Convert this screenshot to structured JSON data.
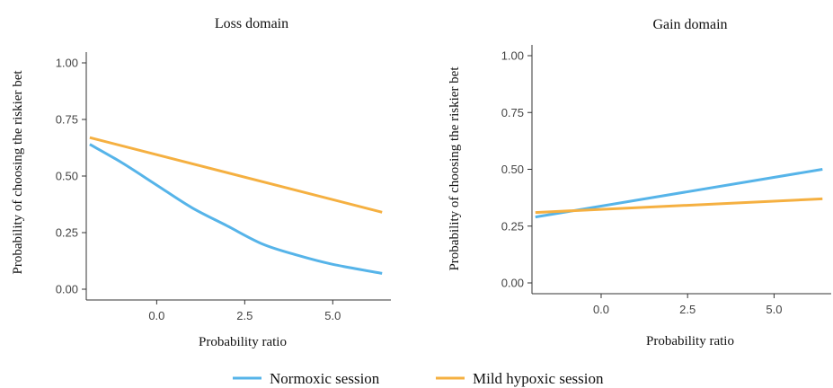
{
  "chart_data": [
    {
      "type": "line",
      "title": "Loss domain",
      "xlabel": "Probability ratio",
      "ylabel": "Probability of choosing the riskier bet",
      "xlim": [
        -2.0,
        6.6
      ],
      "ylim": [
        0.0,
        1.0
      ],
      "x_ticks": [
        0.0,
        2.5,
        5.0
      ],
      "x_tick_labels": [
        "0.0",
        "2.5",
        "5.0"
      ],
      "y_ticks": [
        0.0,
        0.25,
        0.5,
        0.75,
        1.0
      ],
      "y_tick_labels": [
        "0.00",
        "0.25",
        "0.50",
        "0.75",
        "1.00"
      ],
      "grid": false,
      "series": [
        {
          "name": "Normoxic session",
          "color": "#56B4E9",
          "x": [
            -1.9,
            -1.0,
            0.0,
            1.0,
            2.0,
            3.0,
            4.0,
            5.0,
            6.4
          ],
          "y": [
            0.64,
            0.56,
            0.46,
            0.36,
            0.28,
            0.2,
            0.15,
            0.11,
            0.07
          ]
        },
        {
          "name": "Mild hypoxic session",
          "color": "#F5B041",
          "x": [
            -1.9,
            6.4
          ],
          "y": [
            0.67,
            0.34
          ]
        }
      ]
    },
    {
      "type": "line",
      "title": "Gain domain",
      "xlabel": "Probability ratio",
      "ylabel": "Probability of choosing the riskier bet",
      "xlim": [
        -2.0,
        6.6
      ],
      "ylim": [
        0.0,
        1.0
      ],
      "x_ticks": [
        0.0,
        2.5,
        5.0
      ],
      "x_tick_labels": [
        "0.0",
        "2.5",
        "5.0"
      ],
      "y_ticks": [
        0.0,
        0.25,
        0.5,
        0.75,
        1.0
      ],
      "y_tick_labels": [
        "0.00",
        "0.25",
        "0.50",
        "0.75",
        "1.00"
      ],
      "grid": false,
      "series": [
        {
          "name": "Normoxic session",
          "color": "#56B4E9",
          "x": [
            -1.9,
            6.4
          ],
          "y": [
            0.29,
            0.5
          ]
        },
        {
          "name": "Mild hypoxic session",
          "color": "#F5B041",
          "x": [
            -1.9,
            6.4
          ],
          "y": [
            0.31,
            0.37
          ]
        }
      ]
    }
  ],
  "legend": {
    "placement": "bottom",
    "items": [
      {
        "label": "Normoxic session",
        "color": "#56B4E9"
      },
      {
        "label": "Mild hypoxic session",
        "color": "#F5B041"
      }
    ]
  }
}
